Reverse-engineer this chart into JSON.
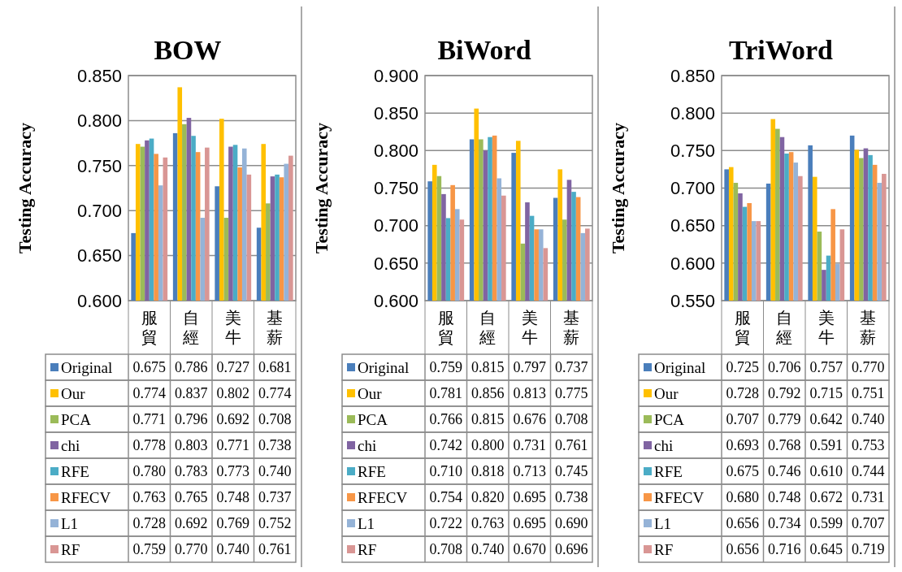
{
  "chart_data": [
    {
      "type": "bar",
      "title": "BOW",
      "ylabel": "Testing Accuracy",
      "categories": [
        "服貿",
        "自經",
        "美牛",
        "基薪"
      ],
      "ylim": [
        0.6,
        0.85
      ],
      "yticks": [
        {
          "value": 0.6,
          "label": "0.600"
        },
        {
          "value": 0.65,
          "label": "0.650"
        },
        {
          "value": 0.7,
          "label": "0.700"
        },
        {
          "value": 0.75,
          "label": "0.750"
        },
        {
          "value": 0.8,
          "label": "0.800"
        },
        {
          "value": 0.85,
          "label": "0.850"
        }
      ],
      "grid": "y",
      "legend": "bottom",
      "series": [
        {
          "name": "Original",
          "color": "#4a7ebb",
          "values": [
            0.675,
            0.786,
            0.727,
            0.681
          ],
          "value_labels": [
            "0.675",
            "0.786",
            "0.727",
            "0.681"
          ]
        },
        {
          "name": "Our",
          "color": "#ffc000",
          "values": [
            0.774,
            0.837,
            0.802,
            0.774
          ],
          "value_labels": [
            "0.774",
            "0.837",
            "0.802",
            "0.774"
          ]
        },
        {
          "name": "PCA",
          "color": "#9bbb59",
          "values": [
            0.771,
            0.796,
            0.692,
            0.708
          ],
          "value_labels": [
            "0.771",
            "0.796",
            "0.692",
            "0.708"
          ]
        },
        {
          "name": "chi",
          "color": "#8064a2",
          "values": [
            0.778,
            0.803,
            0.771,
            0.738
          ],
          "value_labels": [
            "0.778",
            "0.803",
            "0.771",
            "0.738"
          ]
        },
        {
          "name": "RFE",
          "color": "#4bacc6",
          "values": [
            0.78,
            0.783,
            0.773,
            0.74
          ],
          "value_labels": [
            "0.780",
            "0.783",
            "0.773",
            "0.740"
          ]
        },
        {
          "name": "RFECV",
          "color": "#f79646",
          "values": [
            0.763,
            0.765,
            0.748,
            0.737
          ],
          "value_labels": [
            "0.763",
            "0.765",
            "0.748",
            "0.737"
          ]
        },
        {
          "name": "L1",
          "color": "#95b3d7",
          "values": [
            0.728,
            0.692,
            0.769,
            0.752
          ],
          "value_labels": [
            "0.728",
            "0.692",
            "0.769",
            "0.752"
          ]
        },
        {
          "name": "RF",
          "color": "#d99694",
          "values": [
            0.759,
            0.77,
            0.74,
            0.761
          ],
          "value_labels": [
            "0.759",
            "0.770",
            "0.740",
            "0.761"
          ]
        }
      ]
    },
    {
      "type": "bar",
      "title": "BiWord",
      "ylabel": "Testing Accuracy",
      "categories": [
        "服貿",
        "自經",
        "美牛",
        "基薪"
      ],
      "ylim": [
        0.6,
        0.9
      ],
      "yticks": [
        {
          "value": 0.6,
          "label": "0.600"
        },
        {
          "value": 0.65,
          "label": "0.650"
        },
        {
          "value": 0.7,
          "label": "0.700"
        },
        {
          "value": 0.75,
          "label": "0.750"
        },
        {
          "value": 0.8,
          "label": "0.800"
        },
        {
          "value": 0.85,
          "label": "0.850"
        },
        {
          "value": 0.9,
          "label": "0.900"
        }
      ],
      "grid": "y",
      "legend": "bottom",
      "series": [
        {
          "name": "Original",
          "color": "#4a7ebb",
          "values": [
            0.759,
            0.815,
            0.797,
            0.737
          ],
          "value_labels": [
            "0.759",
            "0.815",
            "0.797",
            "0.737"
          ]
        },
        {
          "name": "Our",
          "color": "#ffc000",
          "values": [
            0.781,
            0.856,
            0.813,
            0.775
          ],
          "value_labels": [
            "0.781",
            "0.856",
            "0.813",
            "0.775"
          ]
        },
        {
          "name": "PCA",
          "color": "#9bbb59",
          "values": [
            0.766,
            0.815,
            0.676,
            0.708
          ],
          "value_labels": [
            "0.766",
            "0.815",
            "0.676",
            "0.708"
          ]
        },
        {
          "name": "chi",
          "color": "#8064a2",
          "values": [
            0.742,
            0.8,
            0.731,
            0.761
          ],
          "value_labels": [
            "0.742",
            "0.800",
            "0.731",
            "0.761"
          ]
        },
        {
          "name": "RFE",
          "color": "#4bacc6",
          "values": [
            0.71,
            0.818,
            0.713,
            0.745
          ],
          "value_labels": [
            "0.710",
            "0.818",
            "0.713",
            "0.745"
          ]
        },
        {
          "name": "RFECV",
          "color": "#f79646",
          "values": [
            0.754,
            0.82,
            0.695,
            0.738
          ],
          "value_labels": [
            "0.754",
            "0.820",
            "0.695",
            "0.738"
          ]
        },
        {
          "name": "L1",
          "color": "#95b3d7",
          "values": [
            0.722,
            0.763,
            0.695,
            0.69
          ],
          "value_labels": [
            "0.722",
            "0.763",
            "0.695",
            "0.690"
          ]
        },
        {
          "name": "RF",
          "color": "#d99694",
          "values": [
            0.708,
            0.74,
            0.67,
            0.696
          ],
          "value_labels": [
            "0.708",
            "0.740",
            "0.670",
            "0.696"
          ]
        }
      ]
    },
    {
      "type": "bar",
      "title": "TriWord",
      "ylabel": "Testing Accuracy",
      "categories": [
        "服貿",
        "自經",
        "美牛",
        "基薪"
      ],
      "ylim": [
        0.55,
        0.85
      ],
      "yticks": [
        {
          "value": 0.55,
          "label": "0.550"
        },
        {
          "value": 0.6,
          "label": "0.600"
        },
        {
          "value": 0.65,
          "label": "0.650"
        },
        {
          "value": 0.7,
          "label": "0.700"
        },
        {
          "value": 0.75,
          "label": "0.750"
        },
        {
          "value": 0.8,
          "label": "0.800"
        },
        {
          "value": 0.85,
          "label": "0.850"
        }
      ],
      "grid": "y",
      "legend": "bottom",
      "series": [
        {
          "name": "Original",
          "color": "#4a7ebb",
          "values": [
            0.725,
            0.706,
            0.757,
            0.77
          ],
          "value_labels": [
            "0.725",
            "0.706",
            "0.757",
            "0.770"
          ]
        },
        {
          "name": "Our",
          "color": "#ffc000",
          "values": [
            0.728,
            0.792,
            0.715,
            0.751
          ],
          "value_labels": [
            "0.728",
            "0.792",
            "0.715",
            "0.751"
          ]
        },
        {
          "name": "PCA",
          "color": "#9bbb59",
          "values": [
            0.707,
            0.779,
            0.642,
            0.74
          ],
          "value_labels": [
            "0.707",
            "0.779",
            "0.642",
            "0.740"
          ]
        },
        {
          "name": "chi",
          "color": "#8064a2",
          "values": [
            0.693,
            0.768,
            0.591,
            0.753
          ],
          "value_labels": [
            "0.693",
            "0.768",
            "0.591",
            "0.753"
          ]
        },
        {
          "name": "RFE",
          "color": "#4bacc6",
          "values": [
            0.675,
            0.746,
            0.61,
            0.744
          ],
          "value_labels": [
            "0.675",
            "0.746",
            "0.610",
            "0.744"
          ]
        },
        {
          "name": "RFECV",
          "color": "#f79646",
          "values": [
            0.68,
            0.748,
            0.672,
            0.731
          ],
          "value_labels": [
            "0.680",
            "0.748",
            "0.672",
            "0.731"
          ]
        },
        {
          "name": "L1",
          "color": "#95b3d7",
          "values": [
            0.656,
            0.734,
            0.599,
            0.707
          ],
          "value_labels": [
            "0.656",
            "0.734",
            "0.599",
            "0.707"
          ]
        },
        {
          "name": "RF",
          "color": "#d99694",
          "values": [
            0.656,
            0.716,
            0.645,
            0.719
          ],
          "value_labels": [
            "0.656",
            "0.716",
            "0.645",
            "0.719"
          ]
        }
      ]
    }
  ]
}
